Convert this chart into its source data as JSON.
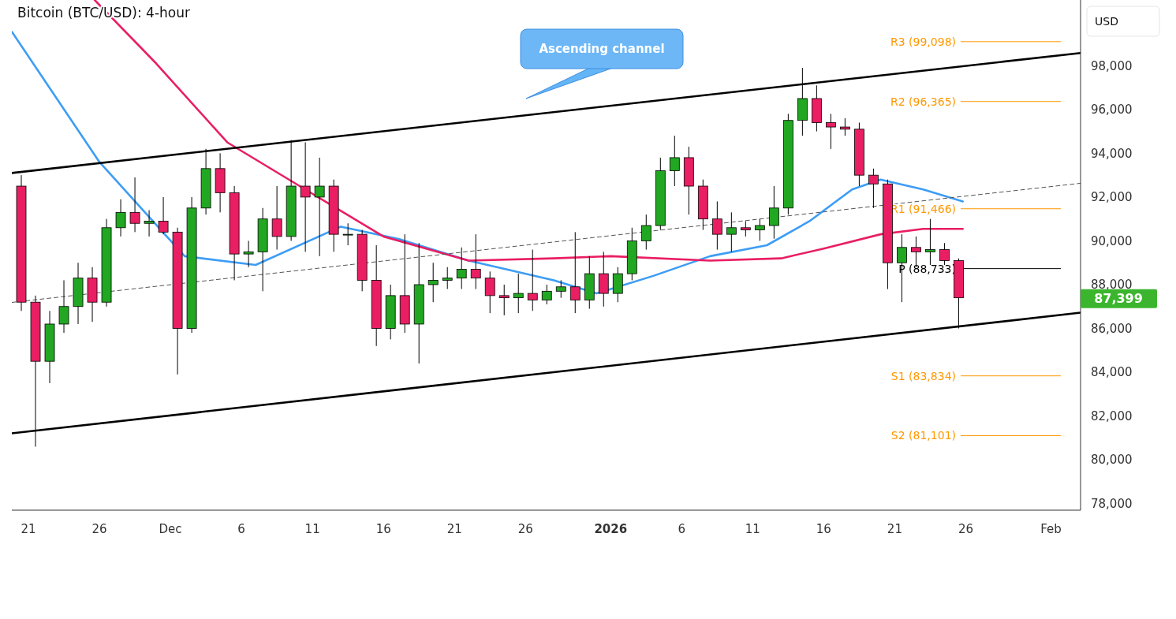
{
  "chart_data": {
    "type": "candlestick",
    "title": "Bitcoin (BTC/USD): 4-hour",
    "ylabel": "USD",
    "xlim": [
      "2025-11-19T20:00",
      "2026-02-03T02:00"
    ],
    "ylim": [
      77700,
      101000
    ],
    "yticks": [
      {
        "value": 78000,
        "label": "78,000"
      },
      {
        "value": 80000,
        "label": "80,000"
      },
      {
        "value": 82000,
        "label": "82,000"
      },
      {
        "value": 84000,
        "label": "84,000"
      },
      {
        "value": 86000,
        "label": "86,000"
      },
      {
        "value": 88000,
        "label": "88,000"
      },
      {
        "value": 90000,
        "label": "90,000"
      },
      {
        "value": 92000,
        "label": "92,000"
      },
      {
        "value": 94000,
        "label": "94,000"
      },
      {
        "value": 96000,
        "label": "96,000"
      },
      {
        "value": 98000,
        "label": "98,000"
      }
    ],
    "xticks": [
      {
        "value": "2025-11-21",
        "label": "21"
      },
      {
        "value": "2025-11-26",
        "label": "26"
      },
      {
        "value": "2025-12-01",
        "label": "Dec"
      },
      {
        "value": "2025-12-06",
        "label": "6"
      },
      {
        "value": "2025-12-11",
        "label": "11"
      },
      {
        "value": "2025-12-16",
        "label": "16"
      },
      {
        "value": "2025-12-21",
        "label": "21"
      },
      {
        "value": "2025-12-26",
        "label": "26"
      },
      {
        "value": "2026-01-01",
        "label": "2026"
      },
      {
        "value": "2026-01-06",
        "label": "6"
      },
      {
        "value": "2026-01-11",
        "label": "11"
      },
      {
        "value": "2026-01-16",
        "label": "16"
      },
      {
        "value": "2026-01-21",
        "label": "21"
      },
      {
        "value": "2026-01-26",
        "label": "26"
      },
      {
        "value": "2026-02-01",
        "label": "Feb"
      }
    ],
    "x": [
      "2025-11-20T12:00",
      "2025-11-21T12:00",
      "2025-11-22T12:00",
      "2025-11-23T12:00",
      "2025-11-24T12:00",
      "2025-11-25T12:00",
      "2025-11-26T12:00",
      "2025-11-27T12:00",
      "2025-11-28T12:00",
      "2025-11-29T12:00",
      "2025-11-30T12:00",
      "2025-12-01T12:00",
      "2025-12-02T12:00",
      "2025-12-03T12:00",
      "2025-12-04T12:00",
      "2025-12-05T12:00",
      "2025-12-06T12:00",
      "2025-12-07T12:00",
      "2025-12-08T12:00",
      "2025-12-09T12:00",
      "2025-12-10T12:00",
      "2025-12-11T12:00",
      "2025-12-12T12:00",
      "2025-12-13T12:00",
      "2025-12-14T12:00",
      "2025-12-15T12:00",
      "2025-12-16T12:00",
      "2025-12-17T12:00",
      "2025-12-18T12:00",
      "2025-12-19T12:00",
      "2025-12-20T12:00",
      "2025-12-21T12:00",
      "2025-12-22T12:00",
      "2025-12-23T12:00",
      "2025-12-24T12:00",
      "2025-12-25T12:00",
      "2025-12-26T12:00",
      "2025-12-27T12:00",
      "2025-12-28T12:00",
      "2025-12-29T12:00",
      "2025-12-30T12:00",
      "2025-12-31T12:00",
      "2026-01-01T12:00",
      "2026-01-02T12:00",
      "2026-01-03T12:00",
      "2026-01-04T12:00",
      "2026-01-05T12:00",
      "2026-01-06T12:00",
      "2026-01-07T12:00",
      "2026-01-08T12:00",
      "2026-01-09T12:00",
      "2026-01-10T12:00",
      "2026-01-11T12:00",
      "2026-01-12T12:00",
      "2026-01-13T12:00",
      "2026-01-14T12:00",
      "2026-01-15T12:00",
      "2026-01-16T12:00",
      "2026-01-17T12:00",
      "2026-01-18T12:00",
      "2026-01-19T12:00",
      "2026-01-20T12:00",
      "2026-01-21T12:00",
      "2026-01-22T12:00",
      "2026-01-23T12:00",
      "2026-01-24T12:00",
      "2026-01-25T12:00"
    ],
    "ohlc": [
      [
        92500,
        93000,
        86800,
        87200
      ],
      [
        87200,
        87500,
        80600,
        84500
      ],
      [
        84500,
        86800,
        83500,
        86200
      ],
      [
        86200,
        88200,
        85800,
        87000
      ],
      [
        87000,
        89000,
        86200,
        88300
      ],
      [
        88300,
        88800,
        86300,
        87200
      ],
      [
        87200,
        91000,
        87000,
        90600
      ],
      [
        90600,
        91900,
        90200,
        91300
      ],
      [
        91300,
        92900,
        90400,
        90800
      ],
      [
        90800,
        91400,
        90200,
        90900
      ],
      [
        90900,
        92000,
        90300,
        90400
      ],
      [
        90400,
        90600,
        83900,
        86000
      ],
      [
        86000,
        92000,
        85800,
        91500
      ],
      [
        91500,
        94200,
        91200,
        93300
      ],
      [
        93300,
        94000,
        91300,
        92200
      ],
      [
        92200,
        92500,
        88200,
        89400
      ],
      [
        89400,
        90000,
        88800,
        89500
      ],
      [
        89500,
        91500,
        87700,
        91000
      ],
      [
        91000,
        92500,
        89600,
        90200
      ],
      [
        90200,
        94600,
        90000,
        92500
      ],
      [
        92500,
        94500,
        89500,
        92000
      ],
      [
        92000,
        93800,
        89300,
        92500
      ],
      [
        92500,
        92800,
        89500,
        90300
      ],
      [
        90300,
        90800,
        89800,
        90300
      ],
      [
        90300,
        90500,
        87700,
        88200
      ],
      [
        88200,
        89800,
        85200,
        86000
      ],
      [
        86000,
        88000,
        85500,
        87500
      ],
      [
        87500,
        90300,
        85800,
        86200
      ],
      [
        86200,
        89900,
        84400,
        88000
      ],
      [
        88000,
        89000,
        87200,
        88200
      ],
      [
        88200,
        88800,
        87800,
        88300
      ],
      [
        88300,
        89700,
        87800,
        88700
      ],
      [
        88700,
        90300,
        87800,
        88300
      ],
      [
        88300,
        88600,
        86700,
        87500
      ],
      [
        87500,
        88000,
        86600,
        87400
      ],
      [
        87400,
        88500,
        86700,
        87600
      ],
      [
        87600,
        89600,
        86800,
        87300
      ],
      [
        87300,
        88000,
        87100,
        87700
      ],
      [
        87700,
        88200,
        87400,
        87900
      ],
      [
        87900,
        90400,
        86700,
        87300
      ],
      [
        87300,
        89300,
        86900,
        88500
      ],
      [
        88500,
        89500,
        87000,
        87600
      ],
      [
        87600,
        88800,
        87200,
        88500
      ],
      [
        88500,
        90600,
        88200,
        90000
      ],
      [
        90000,
        91200,
        89600,
        90700
      ],
      [
        90700,
        93800,
        90500,
        93200
      ],
      [
        93200,
        94800,
        92500,
        93800
      ],
      [
        93800,
        94300,
        91200,
        92500
      ],
      [
        92500,
        92800,
        90500,
        91000
      ],
      [
        91000,
        91800,
        89600,
        90300
      ],
      [
        90300,
        91300,
        89500,
        90600
      ],
      [
        90600,
        90900,
        90200,
        90500
      ],
      [
        90500,
        91000,
        90000,
        90700
      ],
      [
        90700,
        92500,
        90100,
        91500
      ],
      [
        91500,
        95800,
        91200,
        95500
      ],
      [
        95500,
        97900,
        94800,
        96500
      ],
      [
        96500,
        97100,
        95000,
        95400
      ],
      [
        95400,
        95800,
        94200,
        95200
      ],
      [
        95200,
        95600,
        94800,
        95100
      ],
      [
        95100,
        95400,
        92500,
        93000
      ],
      [
        93000,
        93300,
        91500,
        92600
      ],
      [
        92600,
        92800,
        87800,
        89000
      ],
      [
        89000,
        90300,
        87200,
        89700
      ],
      [
        89700,
        90200,
        88800,
        89500
      ],
      [
        89500,
        91000,
        88900,
        89600
      ],
      [
        89600,
        89900,
        88900,
        89100
      ],
      [
        89100,
        89200,
        86000,
        87399
      ]
    ],
    "series": [
      {
        "type": "line",
        "color": "#3d9df5",
        "x": [
          "2025-11-19T20:00",
          "2025-11-26",
          "2025-12-02",
          "2025-12-07",
          "2025-12-13",
          "2025-12-17",
          "2025-12-22",
          "2025-12-28",
          "2025-12-31",
          "2026-01-04",
          "2026-01-08",
          "2026-01-12",
          "2026-01-15",
          "2026-01-18",
          "2026-01-20",
          "2026-01-23",
          "2026-01-25T19:00"
        ],
        "values": [
          99550,
          93600,
          89300,
          88900,
          90650,
          90100,
          89100,
          88200,
          87600,
          88400,
          89300,
          89800,
          90900,
          92350,
          92800,
          92350,
          91800
        ]
      },
      {
        "type": "line",
        "color": "#e91e63",
        "x": [
          "2025-11-25T16:00",
          "2025-11-30",
          "2025-12-05",
          "2025-12-11",
          "2025-12-16",
          "2025-12-22",
          "2025-12-28",
          "2026-01-01",
          "2026-01-08",
          "2026-01-13",
          "2026-01-16",
          "2026-01-20",
          "2026-01-23",
          "2026-01-25T19:00"
        ],
        "values": [
          101000,
          98100,
          94500,
          92150,
          90200,
          89100,
          89200,
          89300,
          89100,
          89200,
          89650,
          90300,
          90550,
          90550
        ]
      },
      {
        "type": "line",
        "color": "#000000",
        "x": [
          "2025-11-19T20:00",
          "2026-02-03T02:00"
        ],
        "values": [
          93100,
          98580
        ]
      },
      {
        "type": "line",
        "color": "#000000",
        "x": [
          "2025-11-19T20:00",
          "2026-02-03T02:00"
        ],
        "values": [
          81210,
          86720
        ]
      },
      {
        "type": "line",
        "color": "#555555",
        "line_style": "dashed",
        "x": [
          "2025-11-19T20:00",
          "2026-02-03T02:00"
        ],
        "values": [
          87190,
          92630
        ]
      }
    ],
    "ref_lines": [
      {
        "axis": "y",
        "value": 99098,
        "label": "R3 (99,098)",
        "color": "#ff9800"
      },
      {
        "axis": "y",
        "value": 96365,
        "label": "R2 (96,365)",
        "color": "#ff9800"
      },
      {
        "axis": "y",
        "value": 91466,
        "label": "R1 (91,466)",
        "color": "#ff9800"
      },
      {
        "axis": "y",
        "value": 88733,
        "label": "P (88,733)",
        "color": "#000000"
      },
      {
        "axis": "y",
        "value": 83834,
        "label": "S1 (83,834)",
        "color": "#ff9800"
      },
      {
        "axis": "y",
        "value": 81101,
        "label": "S2 (81,101)",
        "color": "#ff9800"
      }
    ],
    "annotations": [
      "Ascending channel",
      "87,399"
    ]
  }
}
